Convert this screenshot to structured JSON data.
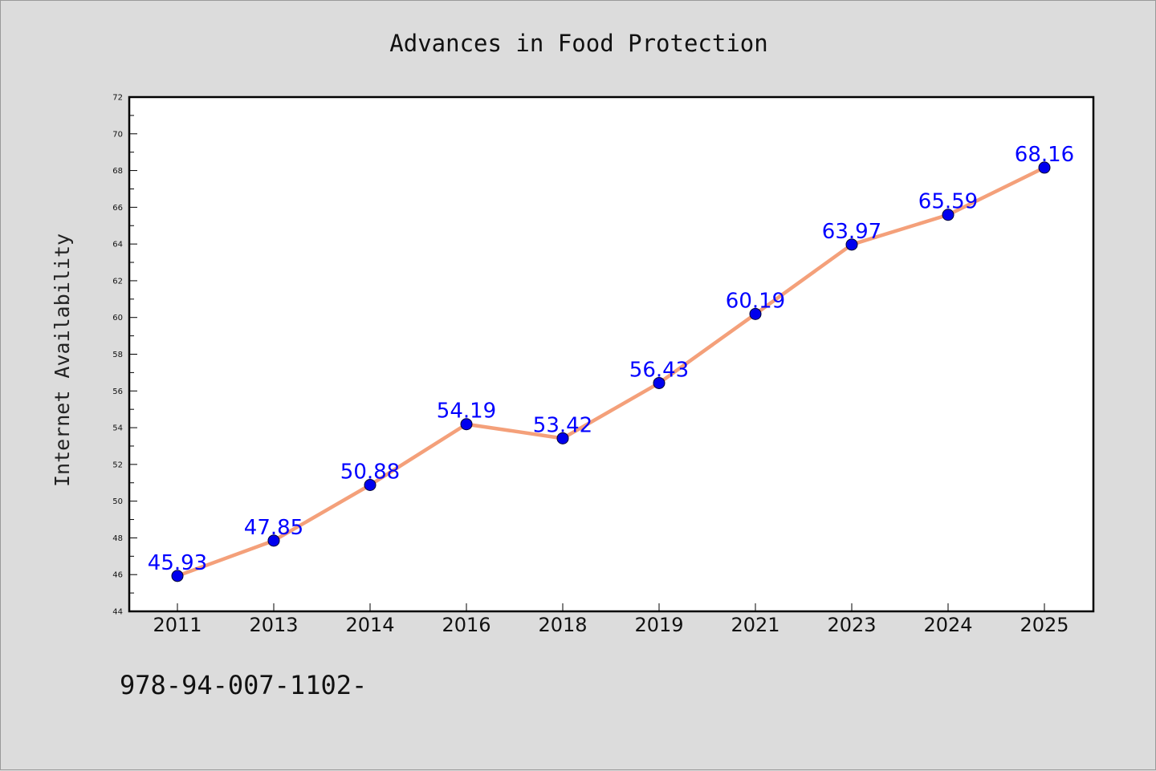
{
  "chart_data": {
    "type": "line",
    "title": "Advances in Food Protection",
    "ylabel": "Internet Availability",
    "xlabel": "",
    "categories": [
      "2011",
      "2013",
      "2014",
      "2016",
      "2018",
      "2019",
      "2021",
      "2023",
      "2024",
      "2025"
    ],
    "values": [
      45.93,
      47.85,
      50.88,
      54.19,
      53.42,
      56.43,
      60.19,
      63.97,
      65.59,
      68.16
    ],
    "data_labels": [
      "45.93",
      "47.85",
      "50.88",
      "54.19",
      "53.42",
      "56.43",
      "60.19",
      "63.97",
      "65.59",
      "68.16"
    ],
    "ylim": [
      44,
      72
    ],
    "yticks": [
      "44",
      "46",
      "48",
      "50",
      "52",
      "54",
      "56",
      "58",
      "60",
      "62",
      "64",
      "66",
      "68",
      "70",
      "72"
    ],
    "grid": false,
    "legend": "none",
    "colors": {
      "line": "#f4a07a",
      "marker": "#0000ee",
      "marker_edge": "#000033",
      "data_label": "#0000ff",
      "background": "#dcdcdc",
      "plot_background": "#ffffff"
    }
  },
  "footer": {
    "text": "978-94-007-1102-"
  }
}
